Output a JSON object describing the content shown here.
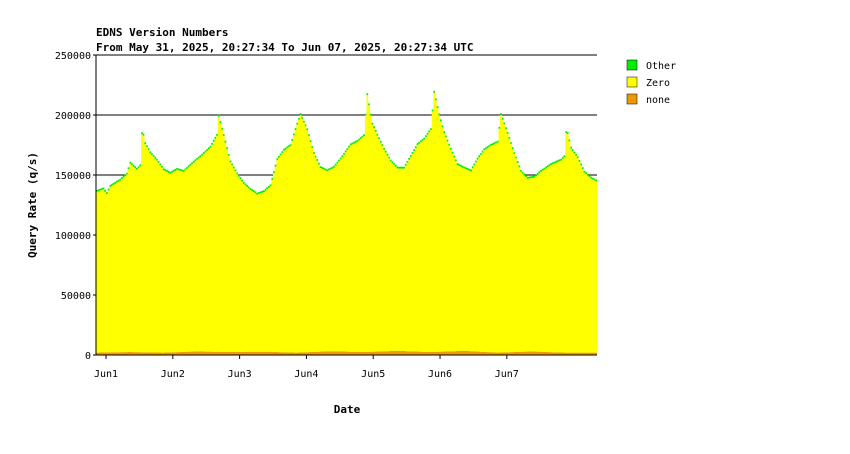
{
  "chart_data": {
    "type": "area",
    "stacked": true,
    "title": "EDNS Version Numbers",
    "subtitle": "From May 31, 2025, 20:27:34 To Jun 07, 2025, 20:27:34 UTC",
    "xlabel": "Date",
    "ylabel": "Query Rate (q/s)",
    "ylim": [
      0,
      250000
    ],
    "y_ticks": [
      0,
      50000,
      100000,
      150000,
      200000,
      250000
    ],
    "y_tick_labels": [
      "0",
      "50000",
      "100000",
      "150000",
      "200000",
      "250000"
    ],
    "x_unit": "day",
    "xlim": [
      0,
      7
    ],
    "x_tick_positions": [
      0.15,
      1.15,
      2.15,
      3.15,
      4.15,
      5.15,
      6.15
    ],
    "x_tick_labels": [
      "Jun1",
      "Jun2",
      "Jun3",
      "Jun4",
      "Jun5",
      "Jun6",
      "Jun7"
    ],
    "grid": "horizontal",
    "legend_position": "right",
    "colors": {
      "Other": "#00ee00",
      "Zero": "#ffff00",
      "none": "#ee9900"
    },
    "series": [
      {
        "name": "none",
        "points": [
          [
            0,
            2000
          ],
          [
            0.5,
            2500
          ],
          [
            1,
            2000
          ],
          [
            1.5,
            3000
          ],
          [
            2,
            2500
          ],
          [
            2.5,
            2800
          ],
          [
            3,
            2000
          ],
          [
            3.5,
            3200
          ],
          [
            4,
            2500
          ],
          [
            4.5,
            3500
          ],
          [
            5,
            2500
          ],
          [
            5.5,
            3500
          ],
          [
            6,
            2000
          ],
          [
            6.5,
            3000
          ],
          [
            7,
            2000
          ]
        ]
      },
      {
        "name": "Zero",
        "points": [
          [
            0,
            134000
          ],
          [
            0.1,
            136000
          ],
          [
            0.15,
            132000
          ],
          [
            0.2,
            138000
          ],
          [
            0.35,
            143000
          ],
          [
            0.45,
            148000
          ],
          [
            0.5,
            157000
          ],
          [
            0.6,
            152000
          ],
          [
            0.65,
            155000
          ],
          [
            0.68,
            187000
          ],
          [
            0.72,
            174000
          ],
          [
            0.8,
            166000
          ],
          [
            0.9,
            160000
          ],
          [
            1.0,
            152000
          ],
          [
            1.1,
            149000
          ],
          [
            1.2,
            152000
          ],
          [
            1.3,
            150000
          ],
          [
            1.4,
            155000
          ],
          [
            1.55,
            162000
          ],
          [
            1.7,
            170000
          ],
          [
            1.8,
            180000
          ],
          [
            1.82,
            197000
          ],
          [
            1.9,
            180000
          ],
          [
            2.0,
            158000
          ],
          [
            2.1,
            148000
          ],
          [
            2.2,
            140000
          ],
          [
            2.3,
            135000
          ],
          [
            2.4,
            131000
          ],
          [
            2.5,
            133000
          ],
          [
            2.6,
            138000
          ],
          [
            2.7,
            160000
          ],
          [
            2.8,
            168000
          ],
          [
            2.9,
            172000
          ],
          [
            3.0,
            190000
          ],
          [
            3.05,
            198000
          ],
          [
            3.15,
            185000
          ],
          [
            3.25,
            165000
          ],
          [
            3.35,
            153000
          ],
          [
            3.45,
            150000
          ],
          [
            3.55,
            153000
          ],
          [
            3.65,
            160000
          ],
          [
            3.8,
            172000
          ],
          [
            3.9,
            175000
          ],
          [
            4.0,
            180000
          ],
          [
            4.05,
            214000
          ],
          [
            4.12,
            190000
          ],
          [
            4.2,
            180000
          ],
          [
            4.3,
            168000
          ],
          [
            4.4,
            158000
          ],
          [
            4.5,
            152000
          ],
          [
            4.6,
            152000
          ],
          [
            4.7,
            162000
          ],
          [
            4.8,
            172000
          ],
          [
            4.9,
            177000
          ],
          [
            5.0,
            185000
          ],
          [
            5.05,
            216000
          ],
          [
            5.12,
            198000
          ],
          [
            5.2,
            182000
          ],
          [
            5.3,
            168000
          ],
          [
            5.4,
            155000
          ],
          [
            5.5,
            152000
          ],
          [
            5.6,
            150000
          ],
          [
            5.7,
            160000
          ],
          [
            5.8,
            168000
          ],
          [
            5.9,
            172000
          ],
          [
            6.0,
            175000
          ],
          [
            6.05,
            198000
          ],
          [
            6.15,
            182000
          ],
          [
            6.25,
            165000
          ],
          [
            6.35,
            150000
          ],
          [
            6.45,
            144000
          ],
          [
            6.55,
            145000
          ],
          [
            6.65,
            150000
          ],
          [
            6.8,
            156000
          ],
          [
            6.95,
            160000
          ],
          [
            7.0,
            163000
          ],
          [
            7.03,
            187000
          ],
          [
            7.1,
            170000
          ],
          [
            7.2,
            162000
          ],
          [
            7.3,
            150000
          ],
          [
            7.4,
            145000
          ],
          [
            7.5,
            142000
          ]
        ]
      },
      {
        "name": "Other",
        "points": [
          [
            0,
            1500
          ],
          [
            1,
            1500
          ],
          [
            2,
            1500
          ],
          [
            3,
            1500
          ],
          [
            4,
            1500
          ],
          [
            5,
            1500
          ],
          [
            6,
            1500
          ],
          [
            7,
            1500
          ],
          [
            7.5,
            1500
          ]
        ]
      }
    ]
  }
}
